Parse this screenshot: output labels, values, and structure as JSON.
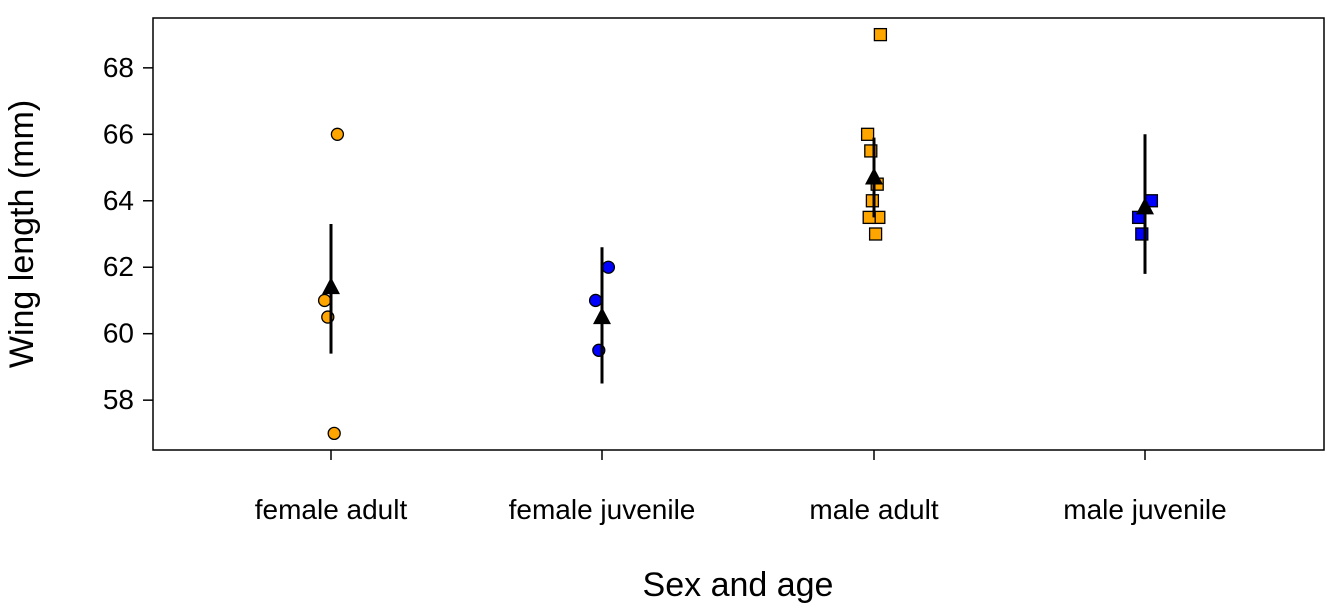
{
  "chart_data": {
    "type": "scatter",
    "title": "",
    "xlabel": "Sex and age",
    "ylabel": "Wing length (mm)",
    "categories": [
      "female adult",
      "female juvenile",
      "male adult",
      "male juvenile"
    ],
    "ylim": [
      56.5,
      69.5
    ],
    "yticks": [
      58,
      60,
      62,
      64,
      66,
      68
    ],
    "grid": false,
    "legend": "none",
    "colors": {
      "adult": "#FFA500",
      "juvenile": "#0000FF",
      "mean": "#000000",
      "point_edge": "#000000"
    },
    "groups": [
      {
        "category": "female adult",
        "marker": "circle",
        "color_key": "adult",
        "values": [
          66,
          61,
          60.5,
          57
        ],
        "mean": 61.4,
        "interval": [
          59.4,
          63.3
        ]
      },
      {
        "category": "female juvenile",
        "marker": "circle",
        "color_key": "juvenile",
        "values": [
          62,
          61,
          59.5
        ],
        "mean": 60.5,
        "interval": [
          58.5,
          62.6
        ]
      },
      {
        "category": "male adult",
        "marker": "square",
        "color_key": "adult",
        "values": [
          69,
          66,
          65.5,
          64.5,
          64,
          63.5,
          63.5,
          63
        ],
        "mean": 64.7,
        "interval": [
          63.5,
          65.9
        ]
      },
      {
        "category": "male juvenile",
        "marker": "square",
        "color_key": "juvenile",
        "values": [
          64,
          63.5,
          63
        ],
        "mean": 63.8,
        "interval": [
          61.8,
          66
        ]
      }
    ]
  }
}
